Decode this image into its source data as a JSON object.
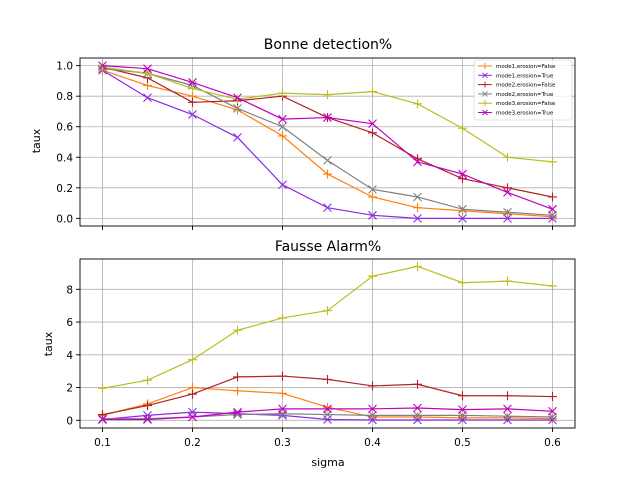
{
  "chart_data": [
    {
      "type": "line",
      "title": "Bonne detection%",
      "xlabel": "",
      "ylabel": "taux",
      "x": [
        0.1,
        0.15,
        0.2,
        0.25,
        0.3,
        0.35,
        0.4,
        0.45,
        0.5,
        0.55,
        0.6
      ],
      "xlim": [
        0.075,
        0.625
      ],
      "ylim": [
        -0.05,
        1.05
      ],
      "xticks": [
        0.1,
        0.2,
        0.3,
        0.4,
        0.5,
        0.6
      ],
      "xtick_labels_visible": false,
      "yticks": [
        0.0,
        0.2,
        0.4,
        0.6,
        0.8,
        1.0
      ],
      "ytick_labels": [
        "0.0",
        "0.2",
        "0.4",
        "0.6",
        "0.8",
        "1.0"
      ],
      "grid": true,
      "legend": "top-right",
      "series": [
        {
          "name": "mode1,erosion=False",
          "color": "#ff7f0e",
          "marker": "plus",
          "values": [
            0.97,
            0.87,
            0.8,
            0.71,
            0.54,
            0.29,
            0.14,
            0.07,
            0.05,
            0.03,
            0.01
          ]
        },
        {
          "name": "mode1,erosion=True",
          "color": "#8a2be2",
          "marker": "x",
          "values": [
            0.97,
            0.79,
            0.68,
            0.53,
            0.22,
            0.07,
            0.02,
            0.0,
            0.0,
            0.0,
            0.0
          ]
        },
        {
          "name": "mode2,erosion=False",
          "color": "#b22222",
          "marker": "plus",
          "values": [
            0.99,
            0.92,
            0.76,
            0.77,
            0.8,
            0.66,
            0.56,
            0.39,
            0.26,
            0.2,
            0.14
          ]
        },
        {
          "name": "mode2,erosion=True",
          "color": "#808080",
          "marker": "x",
          "values": [
            0.98,
            0.95,
            0.87,
            0.72,
            0.6,
            0.38,
            0.19,
            0.14,
            0.06,
            0.04,
            0.02
          ]
        },
        {
          "name": "mode3,erosion=False",
          "color": "#bcbd22",
          "marker": "plus",
          "values": [
            0.99,
            0.95,
            0.85,
            0.78,
            0.82,
            0.81,
            0.83,
            0.75,
            0.59,
            0.4,
            0.37
          ]
        },
        {
          "name": "mode3,erosion=True",
          "color": "#c000c0",
          "marker": "x",
          "values": [
            1.0,
            0.98,
            0.89,
            0.79,
            0.65,
            0.66,
            0.62,
            0.37,
            0.29,
            0.17,
            0.06
          ]
        }
      ]
    },
    {
      "type": "line",
      "title": "Fausse Alarm%",
      "xlabel": "sigma",
      "ylabel": "taux",
      "x": [
        0.1,
        0.15,
        0.2,
        0.25,
        0.3,
        0.35,
        0.4,
        0.45,
        0.5,
        0.55,
        0.6
      ],
      "xlim": [
        0.075,
        0.625
      ],
      "ylim": [
        -0.47,
        9.85
      ],
      "xticks": [
        0.1,
        0.2,
        0.3,
        0.4,
        0.5,
        0.6
      ],
      "xtick_labels": [
        "0.1",
        "0.2",
        "0.3",
        "0.4",
        "0.5",
        "0.6"
      ],
      "xtick_labels_visible": true,
      "yticks": [
        0,
        2,
        4,
        6,
        8
      ],
      "ytick_labels": [
        "0",
        "2",
        "4",
        "6",
        "8"
      ],
      "grid": true,
      "series": [
        {
          "name": "mode1,erosion=False",
          "color": "#ff7f0e",
          "marker": "plus",
          "values": [
            0.3,
            1.0,
            2.0,
            1.8,
            1.65,
            0.8,
            0.2,
            0.2,
            0.15,
            0.15,
            0.1
          ]
        },
        {
          "name": "mode1,erosion=True",
          "color": "#8a2be2",
          "marker": "x",
          "values": [
            0.05,
            0.3,
            0.5,
            0.4,
            0.3,
            0.05,
            0.02,
            0.02,
            0.02,
            0.02,
            0.02
          ]
        },
        {
          "name": "mode2,erosion=False",
          "color": "#b22222",
          "marker": "plus",
          "values": [
            0.35,
            0.9,
            1.6,
            2.65,
            2.7,
            2.5,
            2.1,
            2.2,
            1.5,
            1.5,
            1.45
          ]
        },
        {
          "name": "mode2,erosion=True",
          "color": "#808080",
          "marker": "x",
          "values": [
            0.1,
            0.1,
            0.2,
            0.35,
            0.4,
            0.35,
            0.3,
            0.3,
            0.3,
            0.25,
            0.2
          ]
        },
        {
          "name": "mode3,erosion=False",
          "color": "#bcbd22",
          "marker": "plus",
          "values": [
            1.95,
            2.45,
            3.7,
            5.5,
            6.25,
            6.7,
            8.8,
            9.4,
            8.4,
            8.5,
            8.2
          ]
        },
        {
          "name": "mode3,erosion=True",
          "color": "#c000c0",
          "marker": "x",
          "values": [
            0.05,
            0.05,
            0.2,
            0.5,
            0.7,
            0.7,
            0.7,
            0.75,
            0.65,
            0.7,
            0.55
          ]
        }
      ]
    }
  ]
}
